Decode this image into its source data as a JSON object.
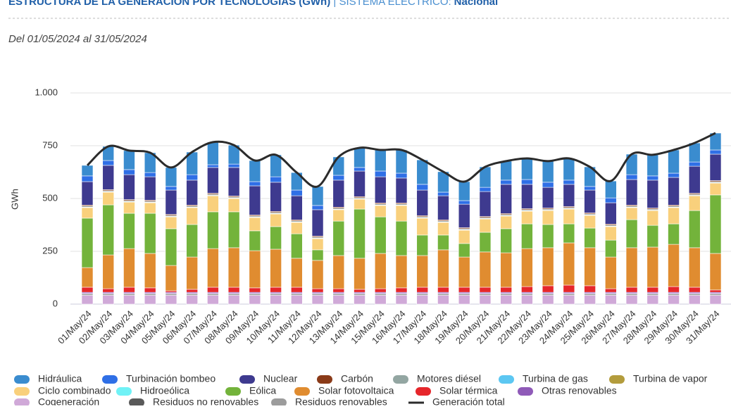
{
  "chart_data": {
    "type": "bar",
    "stacked": true,
    "title": "ESTRUCTURA DE LA GENERACIÓN POR TECNOLOGÍAS (GWh)",
    "title_system": "SISTEMA ELÉCTRICO:",
    "title_region": "Nacional",
    "subtitle": "Del 01/05/2024 al 31/05/2024",
    "ylabel": "GWh",
    "ylim": [
      0,
      1000
    ],
    "yticks": [
      0,
      250,
      500,
      750,
      {
        "value": 1000,
        "label": "1.000"
      }
    ],
    "grid": true,
    "legend": "bottom",
    "categories": [
      "01/May/24",
      "02/May/24",
      "03/May/24",
      "04/May/24",
      "05/May/24",
      "06/May/24",
      "07/May/24",
      "08/May/24",
      "09/May/24",
      "10/May/24",
      "11/May/24",
      "12/May/24",
      "13/May/24",
      "14/May/24",
      "15/May/24",
      "16/May/24",
      "17/May/24",
      "18/May/24",
      "19/May/24",
      "20/May/24",
      "21/May/24",
      "22/May/24",
      "23/May/24",
      "24/May/24",
      "25/May/24",
      "26/May/24",
      "27/May/24",
      "28/May/24",
      "29/May/24",
      "30/May/24",
      "31/May/24"
    ],
    "series": [
      {
        "name": "Hidráulica",
        "color": "#3a8ccf",
        "values": [
          50,
          67,
          90,
          94,
          90,
          107,
          107,
          90,
          100,
          104,
          83,
          90,
          87,
          93,
          100,
          110,
          116,
          97,
          90,
          97,
          90,
          100,
          100,
          103,
          93,
          80,
          97,
          100,
          110,
          90,
          80
        ]
      },
      {
        "name": "Turbinación bombeo",
        "color": "#2f6fe6",
        "values": [
          27,
          23,
          24,
          20,
          17,
          26,
          13,
          16,
          20,
          26,
          27,
          20,
          23,
          17,
          27,
          23,
          27,
          17,
          17,
          20,
          20,
          23,
          24,
          20,
          17,
          23,
          23,
          20,
          20,
          20,
          20
        ]
      },
      {
        "name": "Nuclear",
        "color": "#3e3a8f",
        "values": [
          111,
          115,
          118,
          111,
          115,
          118,
          122,
          135,
          138,
          138,
          114,
          125,
          128,
          121,
          124,
          118,
          121,
          114,
          111,
          118,
          138,
          115,
          98,
          105,
          108,
          101,
          121,
          132,
          131,
          128,
          125
        ]
      },
      {
        "name": "Carbón",
        "color": "#8a3a18",
        "values": [
          5,
          5,
          5,
          5,
          5,
          5,
          5,
          5,
          5,
          5,
          5,
          5,
          5,
          5,
          5,
          5,
          5,
          5,
          5,
          5,
          5,
          5,
          5,
          5,
          5,
          5,
          5,
          5,
          5,
          5,
          5
        ]
      },
      {
        "name": "Motores diésel",
        "color": "#93a6a2",
        "values": [
          5,
          5,
          5,
          5,
          5,
          5,
          5,
          5,
          5,
          5,
          5,
          5,
          5,
          5,
          5,
          5,
          5,
          5,
          5,
          5,
          5,
          5,
          5,
          5,
          5,
          5,
          5,
          5,
          5,
          5,
          5
        ]
      },
      {
        "name": "Turbina de gas",
        "color": "#5cc7f2",
        "values": [
          2,
          2,
          2,
          2,
          2,
          2,
          2,
          2,
          2,
          2,
          2,
          2,
          2,
          2,
          2,
          2,
          2,
          2,
          2,
          2,
          2,
          2,
          2,
          2,
          2,
          2,
          2,
          2,
          2,
          2,
          2
        ]
      },
      {
        "name": "Turbina de vapor",
        "color": "#b39c3c",
        "values": [
          0,
          0,
          0,
          0,
          0,
          0,
          0,
          0,
          0,
          0,
          0,
          0,
          0,
          0,
          0,
          0,
          0,
          0,
          0,
          0,
          0,
          0,
          0,
          0,
          0,
          0,
          0,
          0,
          0,
          0,
          0
        ]
      },
      {
        "name": "Ciclo combinado",
        "color": "#f9d07c",
        "values": [
          50,
          60,
          53,
          50,
          56,
          80,
          76,
          63,
          63,
          60,
          54,
          53,
          54,
          47,
          54,
          74,
          80,
          60,
          63,
          63,
          60,
          60,
          66,
          70,
          60,
          64,
          57,
          70,
          77,
          70,
          56
        ]
      },
      {
        "name": "Hidroeólica",
        "color": "#70f2f6",
        "values": [
          0,
          0,
          0,
          0,
          0,
          0,
          0,
          0,
          0,
          0,
          0,
          0,
          0,
          0,
          0,
          0,
          0,
          0,
          0,
          0,
          0,
          0,
          0,
          0,
          0,
          0,
          0,
          0,
          0,
          0,
          0
        ]
      },
      {
        "name": "Eólica",
        "color": "#73b33b",
        "values": [
          234,
          237,
          167,
          190,
          174,
          154,
          174,
          170,
          94,
          107,
          116,
          50,
          163,
          233,
          173,
          163,
          97,
          70,
          64,
          93,
          114,
          117,
          110,
          90,
          93,
          80,
          133,
          103,
          97,
          176,
          277
        ]
      },
      {
        "name": "Solar fotovoltaica",
        "color": "#e08c30",
        "values": [
          93,
          160,
          183,
          163,
          120,
          153,
          183,
          187,
          176,
          180,
          137,
          134,
          157,
          147,
          167,
          153,
          150,
          177,
          143,
          167,
          163,
          180,
          180,
          200,
          180,
          150,
          187,
          190,
          200,
          187,
          173
        ]
      },
      {
        "name": "Solar térmica",
        "color": "#e6262b",
        "values": [
          24,
          17,
          24,
          21,
          7,
          14,
          24,
          24,
          21,
          24,
          24,
          17,
          17,
          14,
          17,
          21,
          24,
          24,
          24,
          24,
          24,
          27,
          31,
          34,
          31,
          17,
          24,
          24,
          27,
          24,
          11
        ]
      },
      {
        "name": "Otras renovables",
        "color": "#8f5ab8",
        "values": [
          6,
          6,
          6,
          6,
          6,
          6,
          6,
          6,
          6,
          6,
          6,
          6,
          6,
          6,
          6,
          6,
          6,
          6,
          6,
          6,
          6,
          6,
          6,
          6,
          6,
          6,
          6,
          6,
          6,
          6,
          6
        ]
      },
      {
        "name": "Cogeneración",
        "color": "#d0a9d8",
        "values": [
          42,
          42,
          42,
          42,
          42,
          42,
          42,
          42,
          42,
          42,
          42,
          42,
          42,
          42,
          42,
          42,
          42,
          42,
          42,
          42,
          42,
          42,
          42,
          42,
          42,
          42,
          42,
          42,
          42,
          42,
          42
        ]
      },
      {
        "name": "Residuos no renovables",
        "color": "#5a5a5a",
        "values": [
          5,
          5,
          5,
          5,
          5,
          5,
          5,
          5,
          5,
          5,
          5,
          5,
          5,
          5,
          5,
          5,
          5,
          5,
          5,
          5,
          5,
          5,
          5,
          5,
          5,
          5,
          5,
          5,
          5,
          5,
          5
        ]
      },
      {
        "name": "Residuos renovables",
        "color": "#9c9c9c",
        "values": [
          3,
          3,
          3,
          3,
          3,
          3,
          3,
          3,
          3,
          3,
          3,
          3,
          3,
          3,
          3,
          3,
          3,
          3,
          3,
          3,
          3,
          3,
          3,
          3,
          3,
          3,
          3,
          3,
          3,
          3,
          3
        ]
      },
      {
        "name": "Generación total",
        "color": "#2b2b2b",
        "type": "line",
        "values": [
          657,
          747,
          727,
          717,
          647,
          720,
          767,
          753,
          680,
          707,
          623,
          557,
          697,
          740,
          730,
          730,
          683,
          627,
          580,
          650,
          677,
          690,
          677,
          690,
          650,
          583,
          710,
          707,
          730,
          763,
          810
        ]
      }
    ]
  }
}
